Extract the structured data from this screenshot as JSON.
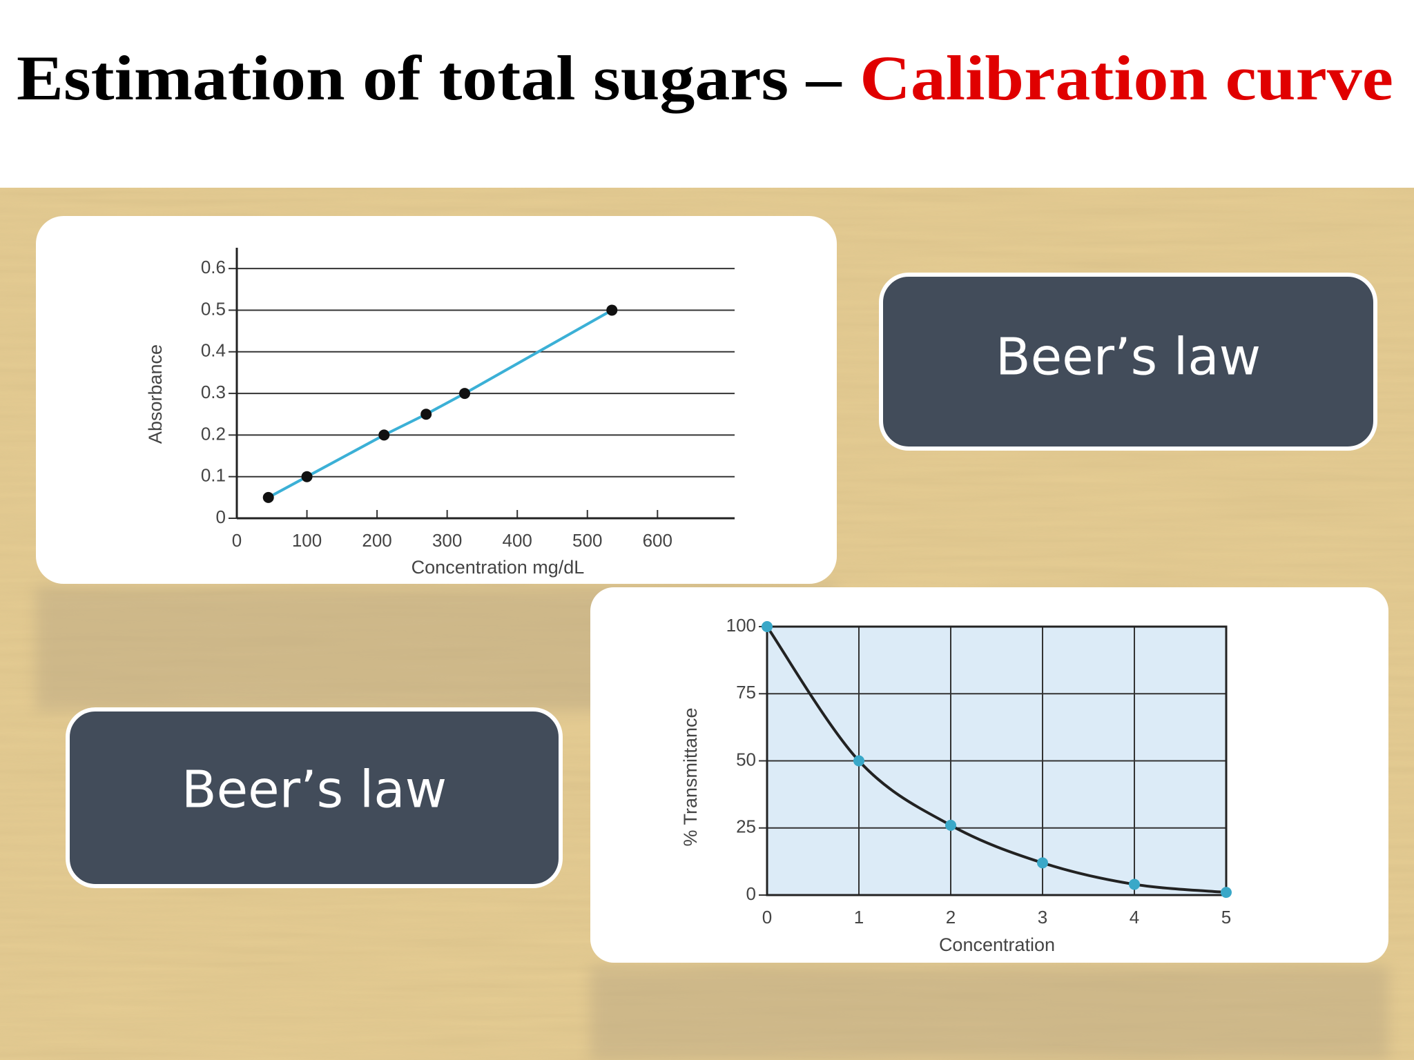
{
  "title": {
    "main": "Estimation of total sugars –",
    "highlight": "Calibration curve"
  },
  "callouts": [
    "Beer’s law",
    "Beer’s law"
  ],
  "chart_data": [
    {
      "type": "line",
      "x_label": "Concentration mg/dL",
      "y_label": "Absorbance",
      "x": [
        45,
        100,
        210,
        270,
        325,
        535
      ],
      "values": [
        0.05,
        0.1,
        0.2,
        0.25,
        0.3,
        0.5
      ],
      "xlim": [
        0,
        710
      ],
      "ylim": [
        0,
        0.65
      ],
      "xticks": [
        0,
        100,
        200,
        300,
        400,
        500,
        600
      ],
      "yticks": [
        0,
        0.1,
        0.2,
        0.3,
        0.4,
        0.5,
        0.6
      ],
      "grid": "y",
      "color": "#3bb0d6",
      "marker_color": "#111111",
      "smooth": false
    },
    {
      "type": "line",
      "x_label": "Concentration",
      "y_label": "% Transmittance",
      "x": [
        0,
        1,
        2,
        3,
        4,
        5
      ],
      "values": [
        100,
        50,
        26,
        12,
        4,
        1
      ],
      "xlim": [
        0,
        5
      ],
      "ylim": [
        0,
        100
      ],
      "xticks": [
        0,
        1,
        2,
        3,
        4,
        5
      ],
      "yticks": [
        0,
        25,
        50,
        75,
        100
      ],
      "grid": "both",
      "color": "#222222",
      "marker_color": "#3aa8c8",
      "background": "#dcebf7",
      "smooth": true
    }
  ]
}
